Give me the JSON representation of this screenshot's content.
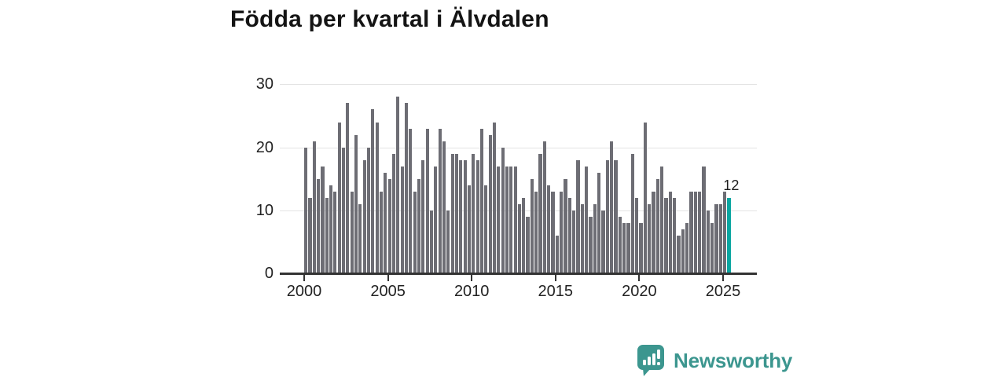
{
  "title": "Födda per kvartal i Älvdalen",
  "annotation": {
    "latest_value_label": "12"
  },
  "logo": {
    "text": "Newsworthy"
  },
  "colors": {
    "bar": "#6d6d74",
    "highlight": "#0aa6a1",
    "logo_teal": "#3c968f",
    "gridline": "#e4e4e4",
    "axis": "#333333",
    "tick_text": "#222222",
    "title_text": "#141414"
  },
  "chart_data": {
    "type": "bar",
    "title": "Födda per kvartal i Älvdalen",
    "x_unit": "quarter",
    "x_start": "2000 Q1",
    "x_end": "2025 Q2",
    "values": [
      20,
      12,
      21,
      15,
      17,
      12,
      14,
      13,
      24,
      20,
      27,
      13,
      22,
      11,
      18,
      20,
      26,
      24,
      13,
      16,
      15,
      19,
      28,
      17,
      27,
      23,
      13,
      15,
      18,
      23,
      10,
      17,
      23,
      21,
      10,
      19,
      19,
      18,
      18,
      14,
      19,
      18,
      23,
      14,
      22,
      24,
      17,
      20,
      17,
      17,
      17,
      11,
      12,
      9,
      15,
      13,
      19,
      21,
      14,
      13,
      6,
      13,
      15,
      12,
      10,
      18,
      11,
      17,
      9,
      11,
      16,
      10,
      18,
      21,
      18,
      9,
      8,
      8,
      19,
      12,
      8,
      24,
      11,
      13,
      15,
      17,
      12,
      13,
      12,
      6,
      7,
      8,
      13,
      13,
      13,
      17,
      10,
      8,
      11,
      11,
      13,
      12
    ],
    "highlight_last_bar": true,
    "last_value_label": "12",
    "y_ticks": [
      0,
      10,
      20,
      30
    ],
    "x_tick_labels": [
      "2000",
      "2005",
      "2010",
      "2015",
      "2020",
      "2025"
    ],
    "ylim": [
      0,
      30
    ],
    "grid": "horizontal",
    "legend": "none"
  }
}
